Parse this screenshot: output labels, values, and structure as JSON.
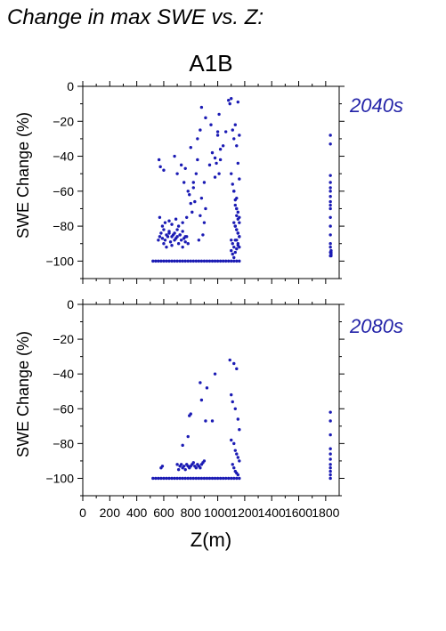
{
  "figure": {
    "title": "Change in max SWE vs. Z:",
    "scenario": "A1B",
    "point_color": "#1b1bb4",
    "label_color": "#2323a8"
  },
  "chart_data": [
    {
      "type": "scatter",
      "period": "2040s",
      "ylabel": "SWE Change (%)",
      "xlabel": "",
      "xlim": [
        0,
        1900
      ],
      "ylim": [
        -110,
        0
      ],
      "y_ticks": [
        0,
        -20,
        -40,
        -60,
        -80,
        -100
      ],
      "x_ticks": [
        0,
        200,
        400,
        600,
        800,
        1000,
        1200,
        1400,
        1600,
        1800
      ],
      "tick_labels": [
        "0",
        "−20",
        "−40",
        "−60",
        "−80",
        "−100"
      ],
      "x": [
        520,
        540,
        560,
        580,
        600,
        620,
        640,
        660,
        680,
        700,
        720,
        740,
        760,
        780,
        800,
        820,
        840,
        860,
        880,
        900,
        920,
        940,
        960,
        980,
        1000,
        1020,
        1040,
        1060,
        1080,
        1100,
        1120,
        1140,
        1160,
        1840,
        1840,
        1840,
        1840,
        560,
        570,
        590,
        600,
        610,
        620,
        630,
        640,
        650,
        660,
        670,
        680,
        690,
        700,
        710,
        720,
        730,
        740,
        750,
        760,
        770,
        780,
        580,
        600,
        620,
        640,
        660,
        680,
        700,
        720,
        740,
        760,
        570,
        590,
        610,
        640,
        660,
        690,
        710,
        740,
        770,
        565,
        575,
        600,
        680,
        700,
        730,
        750,
        760,
        780,
        800,
        820,
        850,
        870,
        880,
        900,
        910,
        940,
        950,
        960,
        980,
        1000,
        1010,
        1020,
        1040,
        1060,
        790,
        800,
        810,
        820,
        830,
        840,
        850,
        860,
        870,
        880,
        890,
        900,
        910,
        980,
        990,
        1000,
        1010,
        1020,
        1080,
        1090,
        1100,
        1110,
        1120,
        1130,
        1140,
        1150,
        1160,
        1100,
        1110,
        1120,
        1130,
        1140,
        1150,
        1160,
        1120,
        1130,
        1140,
        1150,
        1160,
        1100,
        1110,
        1120,
        1130,
        1140,
        1150,
        1160,
        1120,
        1130,
        1140,
        1140,
        1150,
        1160,
        1130,
        1140,
        1150,
        1160,
        1140,
        1150,
        1160,
        1100,
        1110,
        1120,
        1130,
        1140,
        1150,
        1835,
        1835,
        1835,
        1835,
        1835,
        1835,
        1835,
        1835,
        1835,
        1835,
        1835,
        1835,
        1835,
        1835,
        1835,
        1835,
        1835
      ],
      "y": [
        -100,
        -100,
        -100,
        -100,
        -100,
        -100,
        -100,
        -100,
        -100,
        -100,
        -100,
        -100,
        -100,
        -100,
        -100,
        -100,
        -100,
        -100,
        -100,
        -100,
        -100,
        -100,
        -100,
        -100,
        -100,
        -100,
        -100,
        -100,
        -100,
        -100,
        -100,
        -100,
        -100,
        -97,
        -95,
        -94,
        -96,
        -88,
        -86,
        -87,
        -90,
        -88,
        -92,
        -86,
        -84,
        -89,
        -91,
        -85,
        -88,
        -87,
        -86,
        -90,
        -85,
        -88,
        -92,
        -87,
        -89,
        -86,
        -90,
        -84,
        -82,
        -85,
        -83,
        -86,
        -84,
        -82,
        -85,
        -83,
        -86,
        -75,
        -80,
        -78,
        -77,
        -79,
        -76,
        -80,
        -78,
        -75,
        -42,
        -46,
        -48,
        -40,
        -50,
        -45,
        -55,
        -47,
        -60,
        -35,
        -58,
        -30,
        -25,
        -12,
        -55,
        -18,
        -45,
        -22,
        -38,
        -52,
        -28,
        -16,
        -42,
        -34,
        -26,
        -62,
        -67,
        -72,
        -55,
        -66,
        -50,
        -42,
        -88,
        -74,
        -64,
        -85,
        -78,
        -70,
        -41,
        -44,
        -26,
        -50,
        -36,
        -8,
        -10,
        -7,
        -25,
        -30,
        -22,
        -34,
        -9,
        -28,
        -50,
        -56,
        -60,
        -65,
        -70,
        -72,
        -75,
        -78,
        -80,
        -82,
        -84,
        -86,
        -88,
        -90,
        -92,
        -88,
        -64,
        -44,
        -53,
        -60,
        -68,
        -70,
        -74,
        -76,
        -78,
        -80,
        -82,
        -84,
        -86,
        -88,
        -90,
        -92,
        -94,
        -96,
        -98,
        -95,
        -93,
        -91,
        -28,
        -33,
        -51,
        -55,
        -58,
        -60,
        -63,
        -66,
        -68,
        -70,
        -75,
        -80,
        -85,
        -90,
        -92,
        -95,
        -97
      ]
    },
    {
      "type": "scatter",
      "period": "2080s",
      "ylabel": "SWE Change (%)",
      "xlabel": "Z(m)",
      "xlim": [
        0,
        1900
      ],
      "ylim": [
        -110,
        0
      ],
      "y_ticks": [
        0,
        -20,
        -40,
        -60,
        -80,
        -100
      ],
      "x_ticks": [
        0,
        200,
        400,
        600,
        800,
        1000,
        1200,
        1400,
        1600,
        1800
      ],
      "tick_labels": [
        "0",
        "−20",
        "−40",
        "−60",
        "−80",
        "−100"
      ],
      "x_tick_labels": [
        "0",
        "200",
        "400",
        "600",
        "800",
        "1000",
        "1200",
        "1400",
        "1600",
        "1800"
      ],
      "x": [
        520,
        540,
        560,
        580,
        600,
        620,
        640,
        660,
        680,
        700,
        720,
        740,
        760,
        780,
        800,
        820,
        840,
        860,
        880,
        900,
        920,
        940,
        960,
        980,
        1000,
        1020,
        1040,
        1060,
        1080,
        1100,
        1120,
        1140,
        1160,
        580,
        590,
        700,
        710,
        720,
        730,
        740,
        750,
        760,
        770,
        780,
        790,
        800,
        810,
        820,
        830,
        840,
        850,
        860,
        870,
        880,
        890,
        900,
        740,
        780,
        790,
        800,
        870,
        880,
        910,
        920,
        960,
        980,
        1090,
        1100,
        1110,
        1120,
        1130,
        1140,
        1150,
        1160,
        1100,
        1120,
        1130,
        1140,
        1150,
        1160,
        1110,
        1120,
        1130,
        1140,
        1150,
        1835,
        1835,
        1835,
        1835,
        1835,
        1835,
        1835,
        1835,
        1835,
        1835,
        1835
      ],
      "y": [
        -100,
        -100,
        -100,
        -100,
        -100,
        -100,
        -100,
        -100,
        -100,
        -100,
        -100,
        -100,
        -100,
        -100,
        -100,
        -100,
        -100,
        -100,
        -100,
        -100,
        -100,
        -100,
        -100,
        -100,
        -100,
        -100,
        -100,
        -100,
        -100,
        -100,
        -100,
        -100,
        -100,
        -94,
        -93,
        -92,
        -95,
        -93,
        -92,
        -94,
        -93,
        -95,
        -92,
        -93,
        -94,
        -93,
        -92,
        -91,
        -93,
        -94,
        -92,
        -93,
        -94,
        -92,
        -91,
        -90,
        -81,
        -76,
        -64,
        -63,
        -45,
        -55,
        -67,
        -48,
        -67,
        -40,
        -32,
        -52,
        -56,
        -34,
        -60,
        -37,
        -66,
        -72,
        -78,
        -80,
        -84,
        -86,
        -88,
        -90,
        -92,
        -94,
        -96,
        -97,
        -98,
        -62,
        -67,
        -75,
        -83,
        -86,
        -89,
        -92,
        -94,
        -96,
        -98,
        -100
      ]
    }
  ],
  "xtick_labels": [
    "0",
    "200",
    "400",
    "600",
    "800",
    "1000",
    "1200",
    "1400",
    "1600",
    "1800"
  ]
}
